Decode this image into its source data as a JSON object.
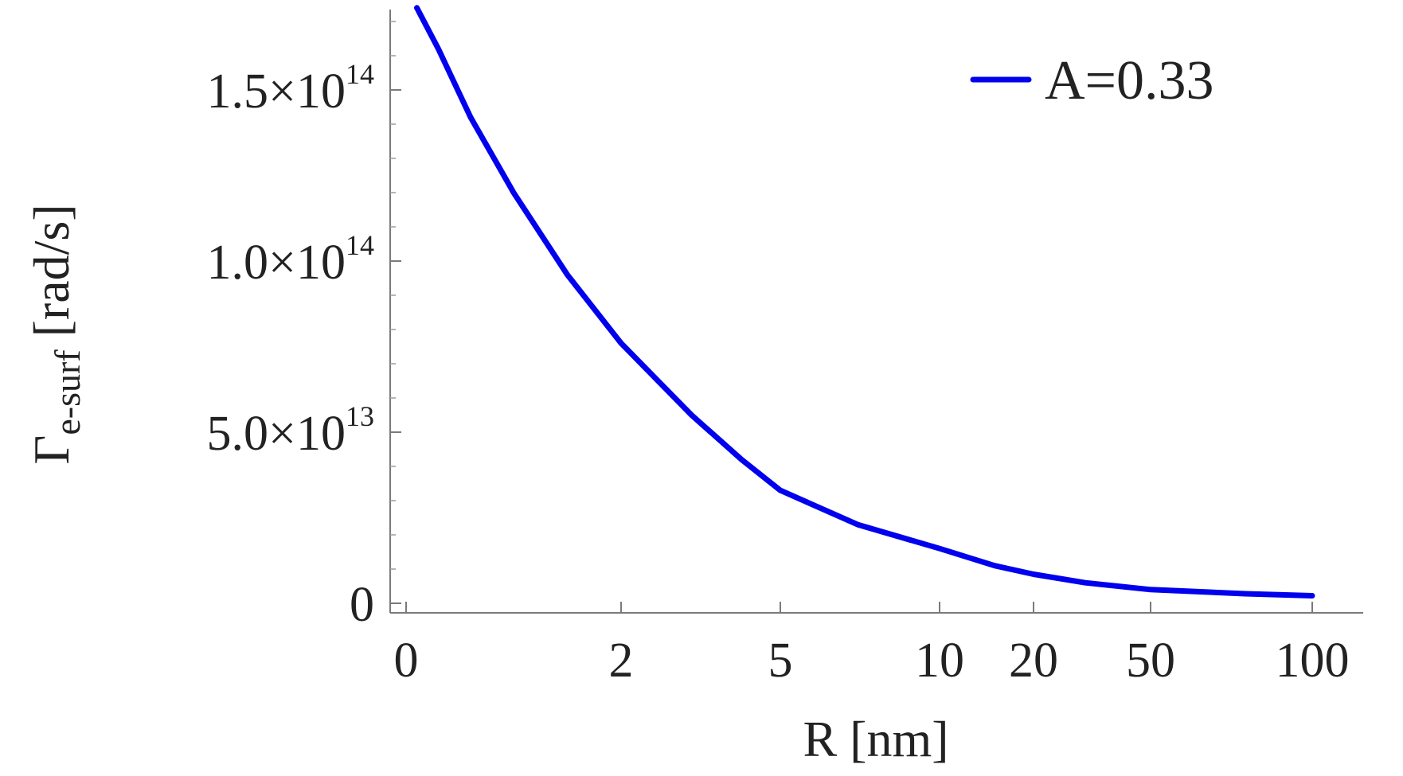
{
  "chart_data": {
    "type": "line",
    "x_scale": "nonlinear (compressed, increasing)",
    "xlabel": "R [nm]",
    "ylabel": {
      "symbol": "Γ",
      "subscript": "e-surf",
      "unit": "[rad/s]"
    },
    "x_ticks": [
      {
        "label": "0",
        "value": 0
      },
      {
        "label": "2",
        "value": 2
      },
      {
        "label": "5",
        "value": 5
      },
      {
        "label": "10",
        "value": 10
      },
      {
        "label": "20",
        "value": 20
      },
      {
        "label": "50",
        "value": 50
      },
      {
        "label": "100",
        "value": 100
      }
    ],
    "y_ticks": [
      {
        "label": "0",
        "value": 0
      },
      {
        "mantissa": "5.0×10",
        "exponent": "13",
        "value": 50000000000000.0
      },
      {
        "mantissa": "1.0×10",
        "exponent": "14",
        "value": 100000000000000.0
      },
      {
        "mantissa": "1.5×10",
        "exponent": "14",
        "value": 150000000000000.0
      }
    ],
    "ylim": [
      0,
      170000000000000.0
    ],
    "grid": false,
    "legend_position": "top-right",
    "series": [
      {
        "name": "A=0.33",
        "color": "#0000ee",
        "points": [
          {
            "x": 0.1,
            "y": 174000000000000.0
          },
          {
            "x": 0.3,
            "y": 162000000000000.0
          },
          {
            "x": 0.6,
            "y": 142000000000000.0
          },
          {
            "x": 1,
            "y": 120000000000000.0
          },
          {
            "x": 1.5,
            "y": 96000000000000.0
          },
          {
            "x": 2,
            "y": 76000000000000.0
          },
          {
            "x": 3,
            "y": 55000000000000.0
          },
          {
            "x": 4,
            "y": 42000000000000.0
          },
          {
            "x": 5,
            "y": 33000000000000.0
          },
          {
            "x": 7,
            "y": 23000000000000.0
          },
          {
            "x": 10,
            "y": 16000000000000.0
          },
          {
            "x": 15,
            "y": 11000000000000.0
          },
          {
            "x": 20,
            "y": 8500000000000.0
          },
          {
            "x": 30,
            "y": 6000000000000.0
          },
          {
            "x": 50,
            "y": 4000000000000.0
          },
          {
            "x": 75,
            "y": 2800000000000.0
          },
          {
            "x": 100,
            "y": 2200000000000.0
          }
        ]
      }
    ]
  }
}
